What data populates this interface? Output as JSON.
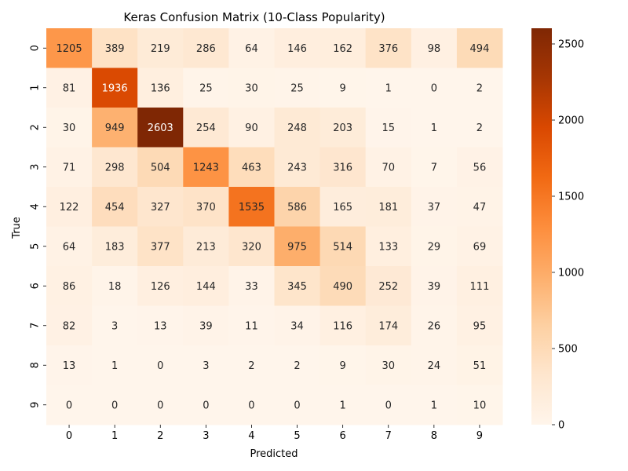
{
  "chart_data": {
    "type": "heatmap",
    "title": "Keras Confusion Matrix (10-Class Popularity)",
    "xlabel": "Predicted",
    "ylabel": "True",
    "x_categories": [
      "0",
      "1",
      "2",
      "3",
      "4",
      "5",
      "6",
      "7",
      "8",
      "9"
    ],
    "y_categories": [
      "0",
      "1",
      "2",
      "3",
      "4",
      "5",
      "6",
      "7",
      "8",
      "9"
    ],
    "values": [
      [
        1205,
        389,
        219,
        286,
        64,
        146,
        162,
        376,
        98,
        494
      ],
      [
        81,
        1936,
        136,
        25,
        30,
        25,
        9,
        1,
        0,
        2
      ],
      [
        30,
        949,
        2603,
        254,
        90,
        248,
        203,
        15,
        1,
        2
      ],
      [
        71,
        298,
        504,
        1243,
        463,
        243,
        316,
        70,
        7,
        56
      ],
      [
        122,
        454,
        327,
        370,
        1535,
        586,
        165,
        181,
        37,
        47
      ],
      [
        64,
        183,
        377,
        213,
        320,
        975,
        514,
        133,
        29,
        69
      ],
      [
        86,
        18,
        126,
        144,
        33,
        345,
        490,
        252,
        39,
        111
      ],
      [
        82,
        3,
        13,
        39,
        11,
        34,
        116,
        174,
        26,
        95
      ],
      [
        13,
        1,
        0,
        3,
        2,
        2,
        9,
        30,
        24,
        51
      ],
      [
        0,
        0,
        0,
        0,
        0,
        0,
        1,
        0,
        1,
        10
      ]
    ],
    "colorbar": {
      "min": 0,
      "max": 2603,
      "ticks": [
        0,
        500,
        1000,
        1500,
        2000,
        2500
      ],
      "colormap": "Oranges",
      "colors": [
        "#fff5eb",
        "#fee6ce",
        "#fdd0a2",
        "#fdae6b",
        "#fd8d3c",
        "#f16913",
        "#d94801",
        "#a63603",
        "#7f2704"
      ]
    },
    "grid": false
  }
}
